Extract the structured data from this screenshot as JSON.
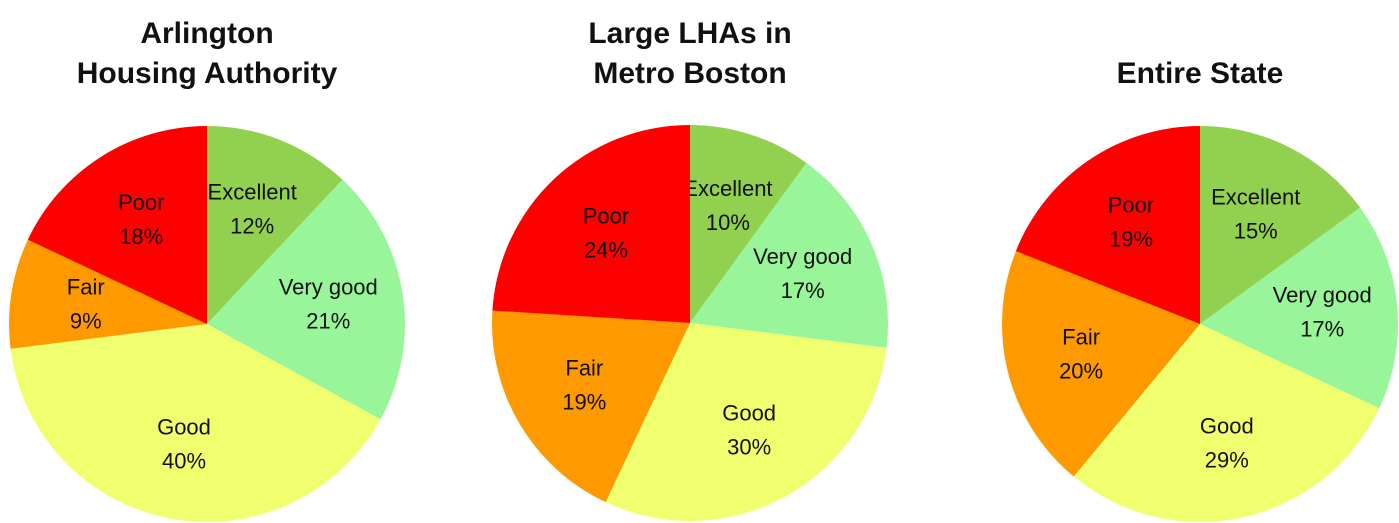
{
  "chart_data": [
    {
      "type": "pie",
      "title": [
        "Arlington",
        "Housing Authority"
      ],
      "categories": [
        "Excellent",
        "Very good",
        "Good",
        "Fair",
        "Poor"
      ],
      "values": [
        12,
        21,
        40,
        9,
        18
      ],
      "value_labels": [
        "12%",
        "21%",
        "40%",
        "9%",
        "18%"
      ],
      "colors": [
        "#92d050",
        "#99f599",
        "#f0ff6e",
        "#ff9900",
        "#ff0000"
      ]
    },
    {
      "type": "pie",
      "title": [
        "Large LHAs in",
        "Metro Boston"
      ],
      "categories": [
        "Excellent",
        "Very good",
        "Good",
        "Fair",
        "Poor"
      ],
      "values": [
        10,
        17,
        30,
        19,
        24
      ],
      "value_labels": [
        "10%",
        "17%",
        "30%",
        "19%",
        "24%"
      ],
      "colors": [
        "#92d050",
        "#99f599",
        "#f0ff6e",
        "#ff9900",
        "#ff0000"
      ]
    },
    {
      "type": "pie",
      "title": [
        "Entire State"
      ],
      "categories": [
        "Excellent",
        "Very good",
        "Good",
        "Fair",
        "Poor"
      ],
      "values": [
        15,
        17,
        29,
        20,
        19
      ],
      "value_labels": [
        "15%",
        "17%",
        "29%",
        "20%",
        "19%"
      ],
      "colors": [
        "#92d050",
        "#99f599",
        "#f0ff6e",
        "#ff9900",
        "#ff0000"
      ]
    }
  ]
}
